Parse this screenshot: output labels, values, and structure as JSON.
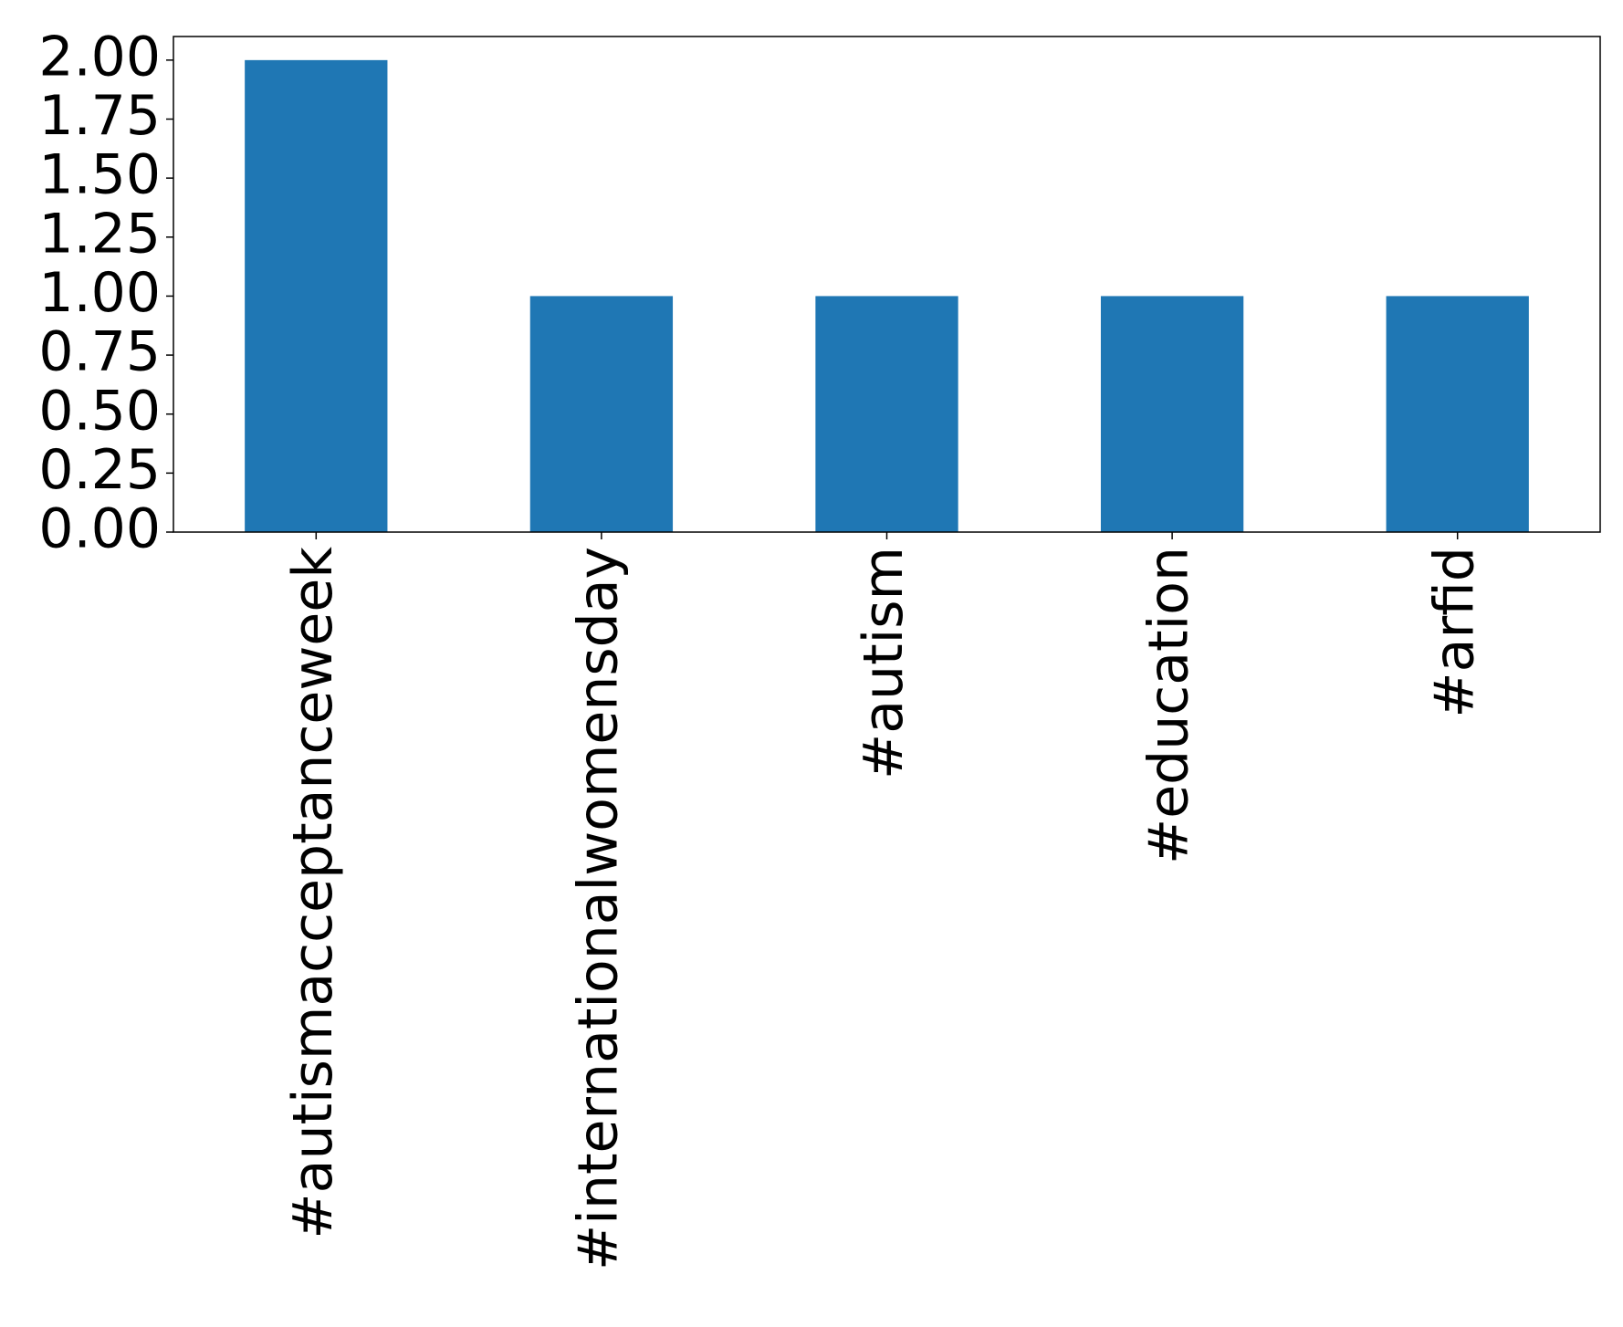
{
  "chart_data": {
    "type": "bar",
    "categories": [
      "#autismacceptanceweek",
      "#internationalwomensday",
      "#autism",
      "#education",
      "#arfid"
    ],
    "values": [
      2,
      1,
      1,
      1,
      1
    ],
    "color": "#1f77b4",
    "ylim": [
      0,
      2.1
    ],
    "yticks": [
      {
        "value": 0,
        "label": "0.00"
      },
      {
        "value": 0.25,
        "label": "0.25"
      },
      {
        "value": 0.5,
        "label": "0.50"
      },
      {
        "value": 0.75,
        "label": "0.75"
      },
      {
        "value": 1,
        "label": "1.00"
      },
      {
        "value": 1.25,
        "label": "1.25"
      },
      {
        "value": 1.5,
        "label": "1.50"
      },
      {
        "value": 1.75,
        "label": "1.75"
      },
      {
        "value": 2,
        "label": "2.00"
      }
    ],
    "grid": false
  }
}
